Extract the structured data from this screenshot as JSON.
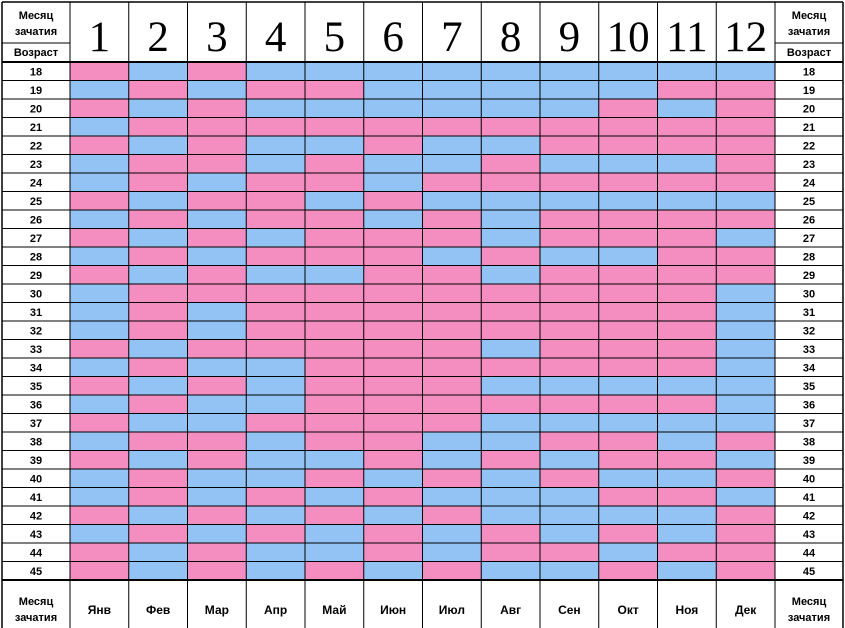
{
  "chart_data": {
    "type": "heatmap",
    "header_left": [
      "Месяц",
      "зачатия",
      "Возраст"
    ],
    "header_right": [
      "Месяц",
      "зачатия",
      "Возраст"
    ],
    "footer_left": [
      "Месяц",
      "зачатия"
    ],
    "footer_right": [
      "Месяц",
      "зачатия"
    ],
    "x_numbers": [
      "1",
      "2",
      "3",
      "4",
      "5",
      "6",
      "7",
      "8",
      "9",
      "10",
      "11",
      "12"
    ],
    "x_months": [
      "Янв",
      "Фев",
      "Мар",
      "Апр",
      "Май",
      "Июн",
      "Июл",
      "Авг",
      "Сен",
      "Окт",
      "Ноя",
      "Дек"
    ],
    "y_ages": [
      "18",
      "19",
      "20",
      "21",
      "22",
      "23",
      "24",
      "25",
      "26",
      "27",
      "28",
      "29",
      "30",
      "31",
      "32",
      "33",
      "34",
      "35",
      "36",
      "37",
      "38",
      "39",
      "40",
      "41",
      "42",
      "43",
      "44",
      "45"
    ],
    "colors": {
      "P": "#f48ec0",
      "B": "#92c3f4"
    },
    "grid": [
      "PBPBBBBBBBBB",
      "BPBPPBBBBBPP",
      "PBPBBBBBBPBP",
      "BPPPPPPPPPPP",
      "PBPBBPBBPPPP",
      "BPPBPBBPBBBP",
      "BPBPPBPPPPPP",
      "PBPPBPBBBBBB",
      "BPBPPBPBPPPP",
      "PBPBPPPBPPPB",
      "BPBPPPBPBBPP",
      "PBPBBPPBPPPP",
      "BPPPPPPPPPPB",
      "BPBPPPPPPPPB",
      "BPBPPPPPPPPB",
      "PBPPPPPBPPPB",
      "BPBBPPPPPPPB",
      "PBPBPPPBBBBB",
      "BPBBPPPPPPPB",
      "PBBPPPPBBBBB",
      "BPPBPPBBPPBP",
      "PBPBBPBPBPPB",
      "BPBBPBPBPBBP",
      "BPBPBPBBBPPB",
      "PBPBPBPBBBBP",
      "BPBPBPBPBPBP",
      "PBPBBPBPPBPP",
      "PBPBPBPBBPBP"
    ]
  }
}
